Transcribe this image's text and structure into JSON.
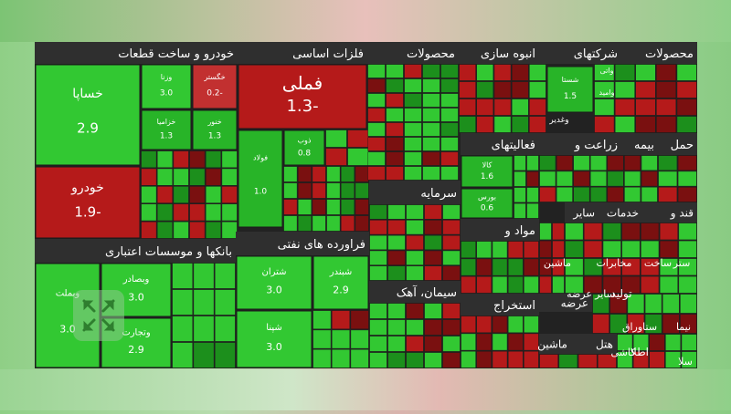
{
  "chart_data": {
    "type": "treemap",
    "title": "",
    "sectors": [
      {
        "name": "خودرو و ساخت قطعات"
      },
      {
        "name": "فلزات اساسی"
      },
      {
        "name": "محصولات"
      },
      {
        "name": "انبوه سازی"
      },
      {
        "name": "شرکتهای"
      },
      {
        "name": "محصولات"
      },
      {
        "name": "بانکها و موسسات اعتباری"
      },
      {
        "name": "فراورده های نفتی"
      },
      {
        "name": "سرمایه"
      },
      {
        "name": "حمل"
      },
      {
        "name": "بیمه"
      },
      {
        "name": "زراعت و"
      },
      {
        "name": "فعالیتهای"
      },
      {
        "name": "خدمات"
      },
      {
        "name": "سایر"
      },
      {
        "name": "قند و"
      },
      {
        "name": "مواد و"
      },
      {
        "name": "سیمان، آهک"
      },
      {
        "name": "استخراج"
      },
      {
        "name": "عرضه"
      },
      {
        "name": "هتل"
      },
      {
        "name": "ماشین"
      }
    ],
    "tiles": [
      {
        "symbol": "خساپا",
        "change": 2.9
      },
      {
        "symbol": "خودرو",
        "change": -1.9
      },
      {
        "symbol": "فملی",
        "change": -1.3
      },
      {
        "symbol": "وبملت",
        "change": 3.0
      },
      {
        "symbol": "وبصادر",
        "change": 3.0
      },
      {
        "symbol": "وتجارت",
        "change": 2.9
      },
      {
        "symbol": "شتران",
        "change": 3.0
      },
      {
        "symbol": "شبندر",
        "change": 2.9
      },
      {
        "symbol": "شپنا",
        "change": 3.0
      },
      {
        "symbol": "وزنا",
        "change": 3.0
      },
      {
        "symbol": "خگستر",
        "change": -0.2
      },
      {
        "symbol": "خزامیا",
        "change": 1.3
      },
      {
        "symbol": "خنور",
        "change": 1.3
      },
      {
        "symbol": "فولاد",
        "change": 1.0
      },
      {
        "symbol": "ذوب",
        "change": 0.8
      },
      {
        "symbol": "شستا",
        "change": 1.5
      },
      {
        "symbol": "کالا",
        "change": 1.6
      },
      {
        "symbol": "بورس",
        "change": 0.6
      }
    ],
    "extra_labels": [
      "وغدیر",
      "وامید",
      "واتی",
      "ماشین",
      "مخابرات",
      "ساخت",
      "ستر",
      "تولید",
      "سایر",
      "عرضه",
      "ستاوراق",
      "اطلا",
      "کاشی",
      "سلا",
      "نیما"
    ]
  },
  "colors": {
    "header_bar": "#2f2f2f",
    "green_strong": "#1fa61f",
    "green_bright": "#32c832",
    "red_strong": "#b51a1a",
    "red_dark": "#8a0f0f",
    "border": "#222222"
  },
  "ui": {
    "expand_icon": "expand-arrows-icon"
  }
}
